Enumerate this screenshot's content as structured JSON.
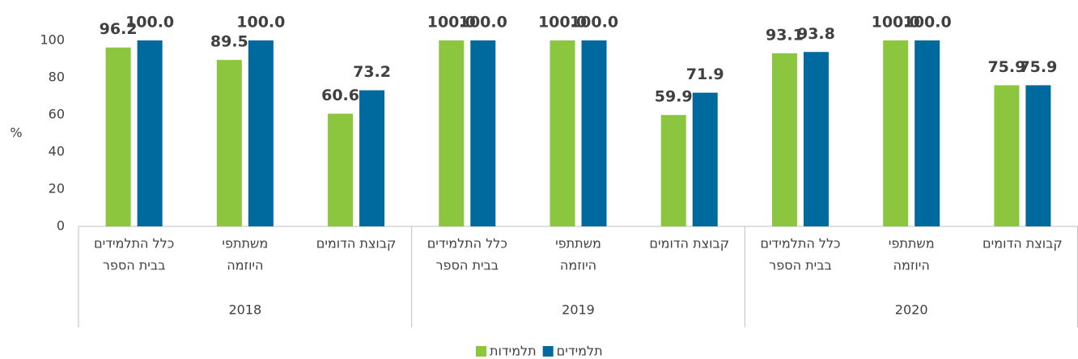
{
  "chart_data": {
    "type": "bar",
    "ylabel": "%",
    "categories": [
      [
        "כלל התלמידים",
        "בבית הספר"
      ],
      [
        "משתתפי",
        "היוזמה"
      ],
      [
        "קבוצת הדומים"
      ],
      [
        "כלל התלמידים",
        "בבית הספר"
      ],
      [
        "משתתפי",
        "היוזמה"
      ],
      [
        "קבוצת הדומים"
      ],
      [
        "כלל התלמידים",
        "בבית הספר"
      ],
      [
        "משתתפי",
        "היוזמה"
      ],
      [
        "קבוצת הדומים"
      ]
    ],
    "groups": [
      "2018",
      "2019",
      "2020"
    ],
    "series": [
      {
        "name": "תלמידות",
        "color": "#8cc63e",
        "values": [
          96.2,
          89.5,
          60.6,
          100,
          100,
          59.9,
          93.1,
          100,
          75.9
        ],
        "value_labels": [
          "96.2",
          "89.5",
          "60.6",
          "100.0",
          "100.0",
          "59.9",
          "93.1",
          "100.0",
          "75.9"
        ]
      },
      {
        "name": "תלמידים",
        "color": "#00699e",
        "values": [
          100,
          100,
          73.2,
          100,
          100,
          71.9,
          93.8,
          100,
          75.9
        ],
        "value_labels": [
          "100.0",
          "100.0",
          "73.2",
          "100.0",
          "100.0",
          "71.9",
          "93.8",
          "100.0",
          "75.9"
        ]
      }
    ],
    "ylim": [
      0,
      100
    ],
    "yticks": [
      0,
      20,
      40,
      60,
      80,
      100
    ],
    "grid": false,
    "legend": "bottom"
  }
}
